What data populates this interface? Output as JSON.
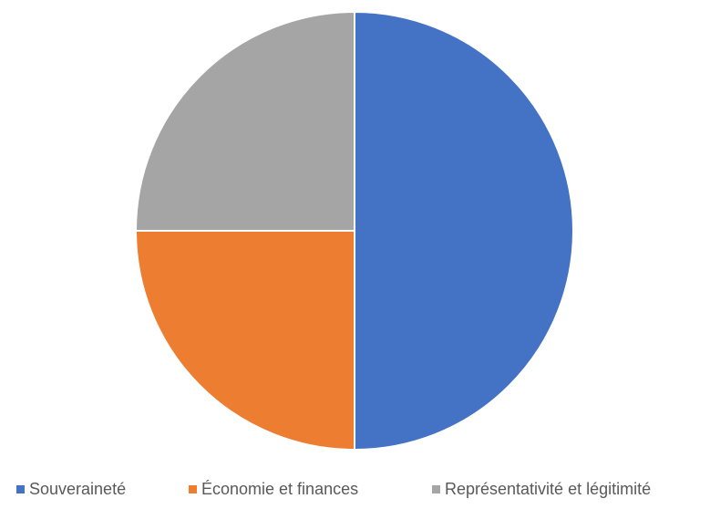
{
  "chart_data": {
    "type": "pie",
    "categories": [
      "Souveraineté",
      "Économie et finances",
      "Représentativité et légitimité"
    ],
    "values": [
      50,
      25,
      25
    ],
    "colors": [
      "#4472C4",
      "#ED7D31",
      "#A5A5A5"
    ],
    "title": "",
    "legend_position": "bottom",
    "start_angle": "12 o'clock, clockwise"
  }
}
